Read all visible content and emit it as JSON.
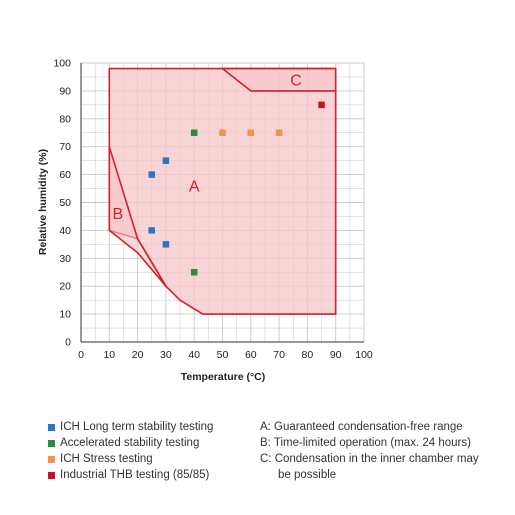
{
  "chart_data": {
    "type": "scatter",
    "xlabel": "Temperature (°C)",
    "ylabel": "Relative humidity (%)",
    "xlim": [
      0,
      100
    ],
    "ylim": [
      0,
      100
    ],
    "xticks": [
      "0",
      "10",
      "20",
      "30",
      "40",
      "50",
      "60",
      "70",
      "80",
      "90",
      "100"
    ],
    "yticks": [
      "0",
      "10",
      "20",
      "30",
      "40",
      "50",
      "60",
      "70",
      "80",
      "90",
      "100"
    ],
    "grid": true,
    "colors": {
      "region_fill": "#f7c6c8",
      "region_line": "#d0202a",
      "grid": "#c8c8c8"
    },
    "regions": [
      {
        "label": "A",
        "label_at": [
          40,
          54
        ],
        "points": [
          [
            10,
            40
          ],
          [
            10,
            98
          ],
          [
            90,
            98
          ],
          [
            90,
            10
          ],
          [
            43,
            10
          ],
          [
            35,
            15
          ],
          [
            30,
            20
          ],
          [
            20,
            37
          ],
          [
            10,
            40
          ]
        ]
      },
      {
        "label": "B",
        "label_at": [
          13,
          44
        ],
        "points": [
          [
            10,
            70
          ],
          [
            10,
            40
          ],
          [
            20,
            32
          ],
          [
            30,
            20
          ],
          [
            20,
            37
          ],
          [
            10,
            70
          ]
        ]
      },
      {
        "label": "C",
        "label_at": [
          76,
          92
        ],
        "points": [
          [
            50,
            98
          ],
          [
            90,
            98
          ],
          [
            90,
            90
          ],
          [
            60,
            90
          ],
          [
            50,
            98
          ]
        ]
      }
    ],
    "series": [
      {
        "name": "ICH Long term stability testing",
        "color": "#2f74c0",
        "points": [
          [
            25,
            60
          ],
          [
            30,
            65
          ],
          [
            25,
            40
          ],
          [
            30,
            35
          ]
        ]
      },
      {
        "name": "Accelerated stability testing",
        "color": "#2e8b3d",
        "points": [
          [
            40,
            75
          ],
          [
            40,
            25
          ]
        ]
      },
      {
        "name": "ICH Stress testing",
        "color": "#f0944a",
        "points": [
          [
            50,
            75
          ],
          [
            60,
            75
          ],
          [
            70,
            75
          ]
        ]
      },
      {
        "name": "Industrial THB testing (85/85)",
        "color": "#c8141e",
        "points": [
          [
            85,
            85
          ]
        ]
      }
    ]
  },
  "legend": {
    "series": [
      {
        "label": "ICH Long term stability testing",
        "color": "#2f74c0"
      },
      {
        "label": "Accelerated stability testing",
        "color": "#2e8b3d"
      },
      {
        "label": "ICH Stress testing",
        "color": "#f0944a"
      },
      {
        "label": "Industrial THB testing (85/85)",
        "color": "#c8141e"
      }
    ],
    "notes": [
      {
        "text": "A: Guaranteed condensation-free range",
        "cont": ""
      },
      {
        "text": "B: Time-limited operation (max. 24 hours)",
        "cont": ""
      },
      {
        "text": "C: Condensation in the inner chamber may",
        "cont": "be possible"
      }
    ]
  }
}
